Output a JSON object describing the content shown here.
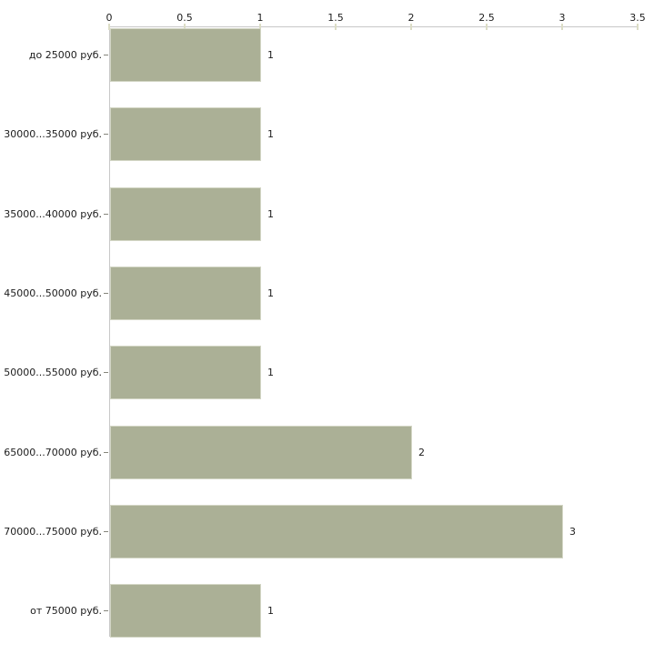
{
  "chart_data": {
    "type": "bar",
    "orientation": "horizontal",
    "title": "",
    "xlabel": "",
    "ylabel": "",
    "categories": [
      "до 25000 руб.",
      "30000...35000 руб.",
      "35000...40000 руб.",
      "45000...50000 руб.",
      "50000...55000 руб.",
      "65000...70000 руб.",
      "70000...75000 руб.",
      "от 75000 руб."
    ],
    "values": [
      1,
      1,
      1,
      1,
      1,
      2,
      3,
      1
    ],
    "value_labels": [
      "1",
      "1",
      "1",
      "1",
      "1",
      "2",
      "3",
      "1"
    ],
    "x_ticks": [
      "0",
      "0.5",
      "1",
      "1.5",
      "2",
      "2.5",
      "3",
      "3.5"
    ],
    "xlim": [
      0,
      3.5
    ],
    "grid": false,
    "legend": null,
    "colors": {
      "bar": "#abb096",
      "bar_border": "#d3d6c5",
      "axis_line": "#c8c8c8",
      "x_tick": "#dcddc6",
      "category_tick": "#85857b",
      "text": "#1c1c1c",
      "background": "#ffffff"
    }
  }
}
